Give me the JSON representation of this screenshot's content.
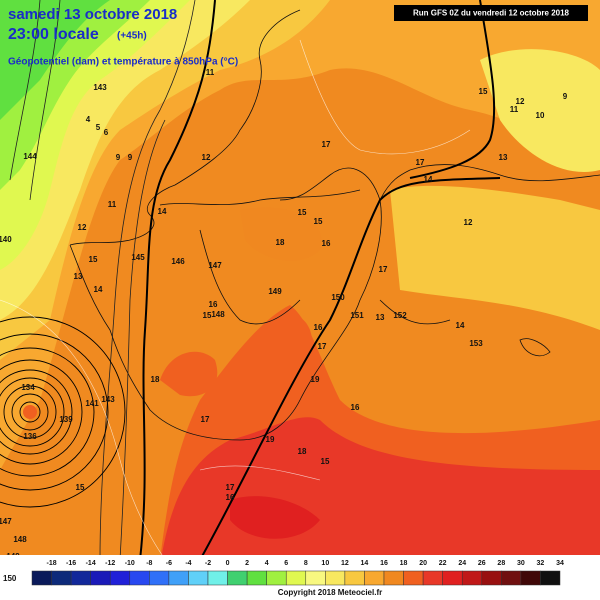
{
  "header": {
    "date": "samedi 13 octobre 2018",
    "time": "23:00 locale",
    "lead": "(+45h)",
    "field": "Géopotentiel (dam) et température à 850hPa (°C)",
    "run": "Run GFS 0Z du vendredi 12 octobre 2018"
  },
  "legend": {
    "corner_label": "150",
    "ticks": [
      -18,
      -16,
      -14,
      -12,
      -10,
      -8,
      -6,
      -4,
      -2,
      0,
      2,
      4,
      6,
      8,
      10,
      12,
      14,
      16,
      18,
      20,
      22,
      24,
      26,
      28,
      30,
      32,
      34
    ],
    "colors": [
      "#0a1a5a",
      "#0d2a7a",
      "#12289a",
      "#1a1ab8",
      "#2020d8",
      "#2848f0",
      "#3070f8",
      "#40a0f8",
      "#60d0f8",
      "#70f0e8",
      "#40d070",
      "#60e040",
      "#a0f040",
      "#e0f850",
      "#f8f880",
      "#f8e860",
      "#f8c840",
      "#f8a830",
      "#f08820",
      "#f06020",
      "#e83828",
      "#e02020",
      "#c01818",
      "#981010",
      "#701010",
      "#400808",
      "#101010"
    ]
  },
  "map_labels": [
    "143",
    "144",
    "140",
    "145",
    "146",
    "147",
    "148",
    "149",
    "150",
    "151",
    "152",
    "153",
    "4",
    "5",
    "6",
    "9",
    "9",
    "11",
    "12",
    "12",
    "13",
    "14",
    "14",
    "15",
    "18",
    "17",
    "16",
    "15",
    "18",
    "15",
    "15",
    "16",
    "17",
    "17",
    "17",
    "13",
    "14",
    "12",
    "14",
    "15",
    "13",
    "12",
    "11",
    "9",
    "10",
    "11",
    "16",
    "17",
    "19",
    "16",
    "15",
    "18",
    "19",
    "17",
    "16",
    "15",
    "147",
    "149",
    "148",
    "134",
    "136",
    "139",
    "141",
    "143"
  ],
  "footer": {
    "copyright": "Copyright 2018 Meteociel.fr"
  }
}
